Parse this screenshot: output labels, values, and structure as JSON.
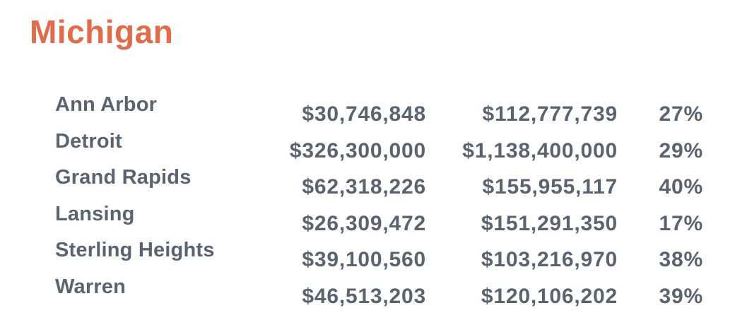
{
  "title": "Michigan",
  "colors": {
    "title_accent": "#E06C4C",
    "table_text": "#5A6470",
    "background": "#FFFFFF"
  },
  "table": {
    "rows": [
      {
        "city": "Ann Arbor",
        "value1": "$30,746,848",
        "value2": "$112,777,739",
        "percent": "27%"
      },
      {
        "city": "Detroit",
        "value1": "$326,300,000",
        "value2": "$1,138,400,000",
        "percent": "29%"
      },
      {
        "city": "Grand Rapids",
        "value1": "$62,318,226",
        "value2": "$155,955,117",
        "percent": "40%"
      },
      {
        "city": "Lansing",
        "value1": "$26,309,472",
        "value2": "$151,291,350",
        "percent": "17%"
      },
      {
        "city": "Sterling Heights",
        "value1": "$39,100,560",
        "value2": "$103,216,970",
        "percent": "38%"
      },
      {
        "city": "Warren",
        "value1": "$46,513,203",
        "value2": "$120,106,202",
        "percent": "39%"
      }
    ]
  },
  "chart_data": {
    "type": "table",
    "title": "Michigan",
    "categories": [
      "Ann Arbor",
      "Detroit",
      "Grand Rapids",
      "Lansing",
      "Sterling Heights",
      "Warren"
    ],
    "series": [
      {
        "name": "amount_column_1_usd",
        "values": [
          30746848,
          326300000,
          62318226,
          26309472,
          39100560,
          46513203
        ]
      },
      {
        "name": "amount_column_2_usd",
        "values": [
          112777739,
          1138400000,
          155955117,
          151291350,
          103216970,
          120106202
        ]
      },
      {
        "name": "percent",
        "values": [
          27,
          29,
          40,
          17,
          38,
          39
        ]
      }
    ],
    "layout": "three right-aligned value columns beside bold city labels; value rows vertically offset ~15px below city labels"
  }
}
